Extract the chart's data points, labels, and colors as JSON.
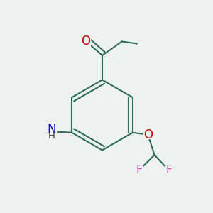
{
  "background_color": "#eef2ee",
  "bond_color": "#2d6b5a",
  "bond_width": 1.5,
  "atom_colors": {
    "O": "#cc0000",
    "N": "#1414cc",
    "F": "#cc44cc",
    "H": "#404040"
  },
  "font_size_large": 11,
  "font_size_small": 9.5
}
